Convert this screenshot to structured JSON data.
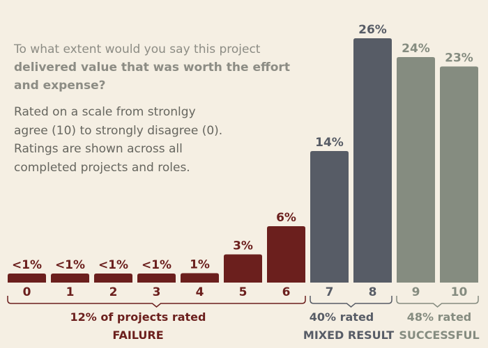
{
  "question": {
    "line1": "To what extent would you say this project",
    "bold": "delivered value that was worth the effort and expense?"
  },
  "note": {
    "lines": [
      "Rated on a scale from stronlgy",
      "agree (10) to strongly disagree (0).",
      "Ratings are shown across all",
      "completed projects and roles."
    ]
  },
  "colors": {
    "failure": "#6b1f1d",
    "mixed": "#575c66",
    "successful": "#858c80",
    "background": "#f5efe3"
  },
  "chart_data": {
    "type": "bar",
    "title": "",
    "xlabel": "",
    "ylabel": "",
    "ylim": [
      0,
      26
    ],
    "categories": [
      "0",
      "1",
      "2",
      "3",
      "4",
      "5",
      "6",
      "7",
      "8",
      "9",
      "10"
    ],
    "values": [
      0.5,
      0.5,
      0.5,
      0.5,
      1,
      3,
      6,
      14,
      26,
      24,
      23
    ],
    "data_labels": [
      "<1%",
      "<1%",
      "<1%",
      "<1%",
      "1%",
      "3%",
      "6%",
      "14%",
      "26%",
      "24%",
      "23%"
    ],
    "groups": [
      {
        "key": "failure",
        "label_line1": "12% of projects rated",
        "label_line2": "FAILURE",
        "from": 0,
        "to": 6
      },
      {
        "key": "mixed",
        "label_line1": "40% rated",
        "label_line2": "MIXED RESULT",
        "from": 7,
        "to": 8
      },
      {
        "key": "successful",
        "label_line1": "48% rated",
        "label_line2": "SUCCESSFUL",
        "from": 9,
        "to": 10
      }
    ]
  }
}
